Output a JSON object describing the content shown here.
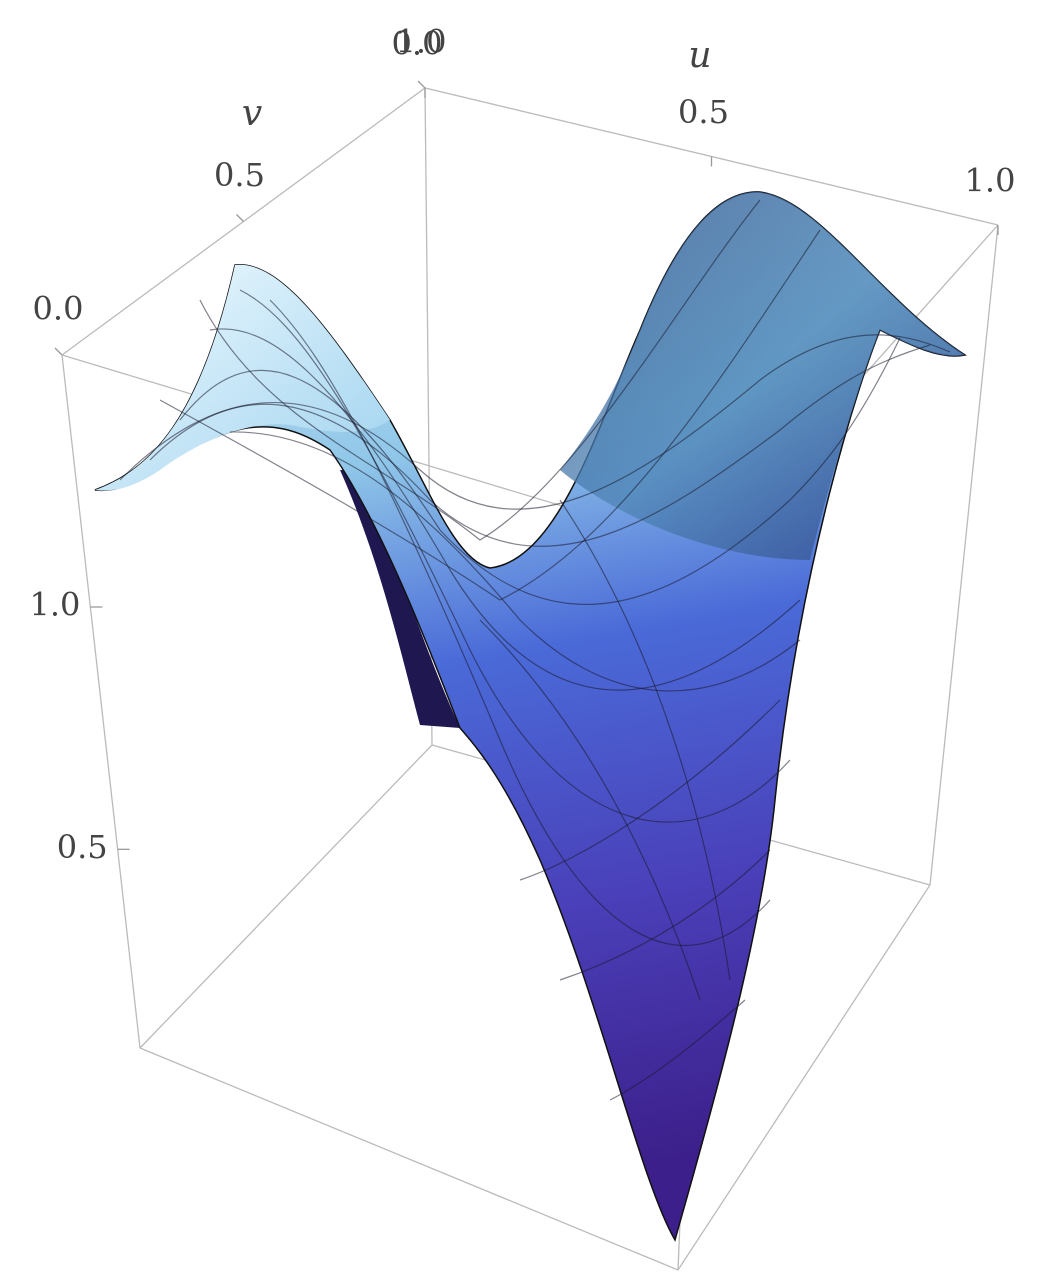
{
  "chart_data": {
    "type": "surface3d",
    "xlabel": "u",
    "ylabel": "v",
    "xlim": [
      0,
      1
    ],
    "xticks": [
      {
        "value": 0,
        "label": "0.0"
      },
      0.5,
      {
        "value": 1,
        "label": "1.0"
      }
    ],
    "ylim": [
      0,
      1
    ],
    "yticks": [
      {
        "value": 0,
        "label": "0.0"
      },
      0.5,
      {
        "value": 1,
        "label": "1.0"
      }
    ],
    "zlim": [
      0.09,
      1.52
    ],
    "zticks": [
      0.5,
      {
        "value": 1,
        "label": "1.0"
      }
    ]
  }
}
